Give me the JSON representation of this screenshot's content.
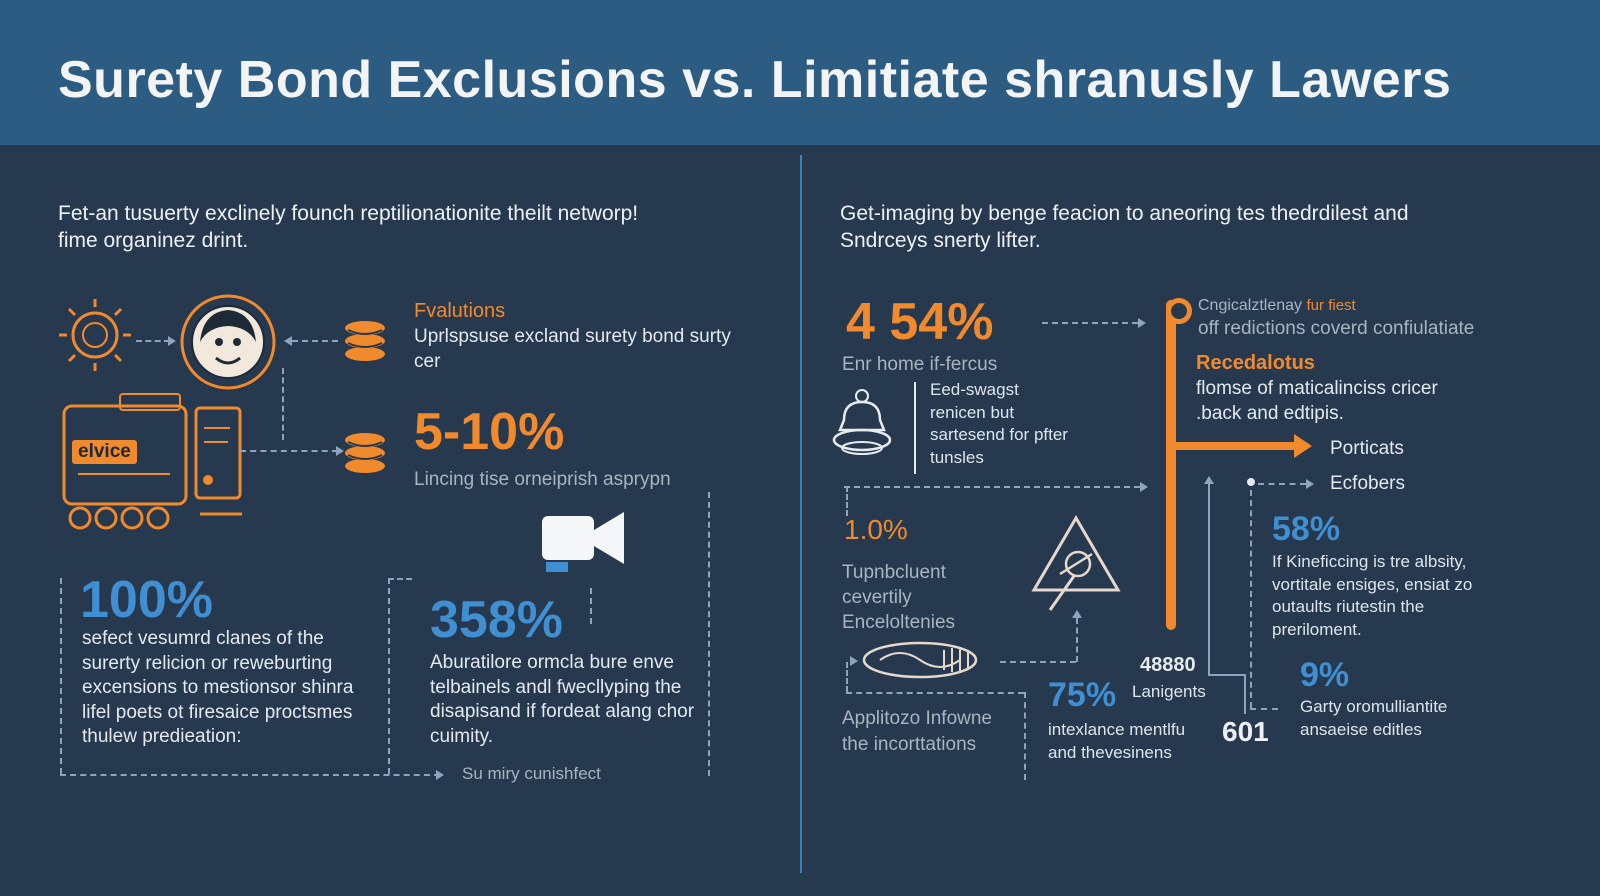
{
  "header": {
    "title": "Surety Bond Exclusions vs. Limitiate shranusly Lawers"
  },
  "left": {
    "intro": "Fet-an tusuerty exclinely founch reptilionationite theilt networp! fime organinez drint.",
    "evolutions": {
      "heading": "Fvalutions",
      "text": "Uprlspsuse excland surety bond surty cer"
    },
    "device_label": "elvice",
    "stat_5_10": {
      "value": "5-10%",
      "caption": "Lincing tise orneiprish asprypn"
    },
    "stat_100": {
      "value": "100%",
      "text": "sefect vesumrd clanes of the surerty relicion or reweburting excensions to mestionsor shinra lifel poets ot firesaice proctsmes thulew predieation:"
    },
    "stat_358": {
      "value": "358%",
      "text": "Aburatilore ormcla bure enve telbainels andl fwecllyping the disapisand if fordeat alang chor cuimity."
    },
    "footer_note": "Su miry cunishfect"
  },
  "right": {
    "intro": "Get-imaging by benge feacion to aneoring tes thedrdilest and Sndrceys snerty lifter.",
    "stat_454": {
      "value": "4 54%",
      "caption": "Enr home if-fercus"
    },
    "bell_text": "Eed-swagst renicen but sartesend for pfter tunsles",
    "top_right": {
      "line1": "Cngicalztlenay",
      "line1b": "fur fiest",
      "line2": "off redictions coverd confiulatiate"
    },
    "recedalotus": {
      "heading": "Recedalotus",
      "text": "flomse of maticalinciss cricer .back and edtipis."
    },
    "porticats": "Porticats",
    "ecfobers": "Ecfobers",
    "stat_58": {
      "value": "58%",
      "text": "If Kineficcing is tre albsity, vortitale ensiges, ensiat zo outaults riutestin the preriloment."
    },
    "stat_10": {
      "value": "1.0%",
      "text": "Tupnbcluent cevertily Enceloltenies"
    },
    "bottom_left": "Applitozo Infowne the incorttations",
    "stat_75": {
      "value": "75%",
      "text": "intexlance mentlfu and thevesinens"
    },
    "num_48880": {
      "value": "48880",
      "caption": "Lanigents"
    },
    "num_601": "601",
    "stat_9": {
      "value": "9%",
      "text": "Garty oromulliantite ansaeise editles"
    }
  },
  "colors": {
    "background": "#26394e",
    "header": "#2d5c82",
    "orange": "#f18a2c",
    "blue": "#3f8fd2",
    "divider": "#3a83b8"
  }
}
